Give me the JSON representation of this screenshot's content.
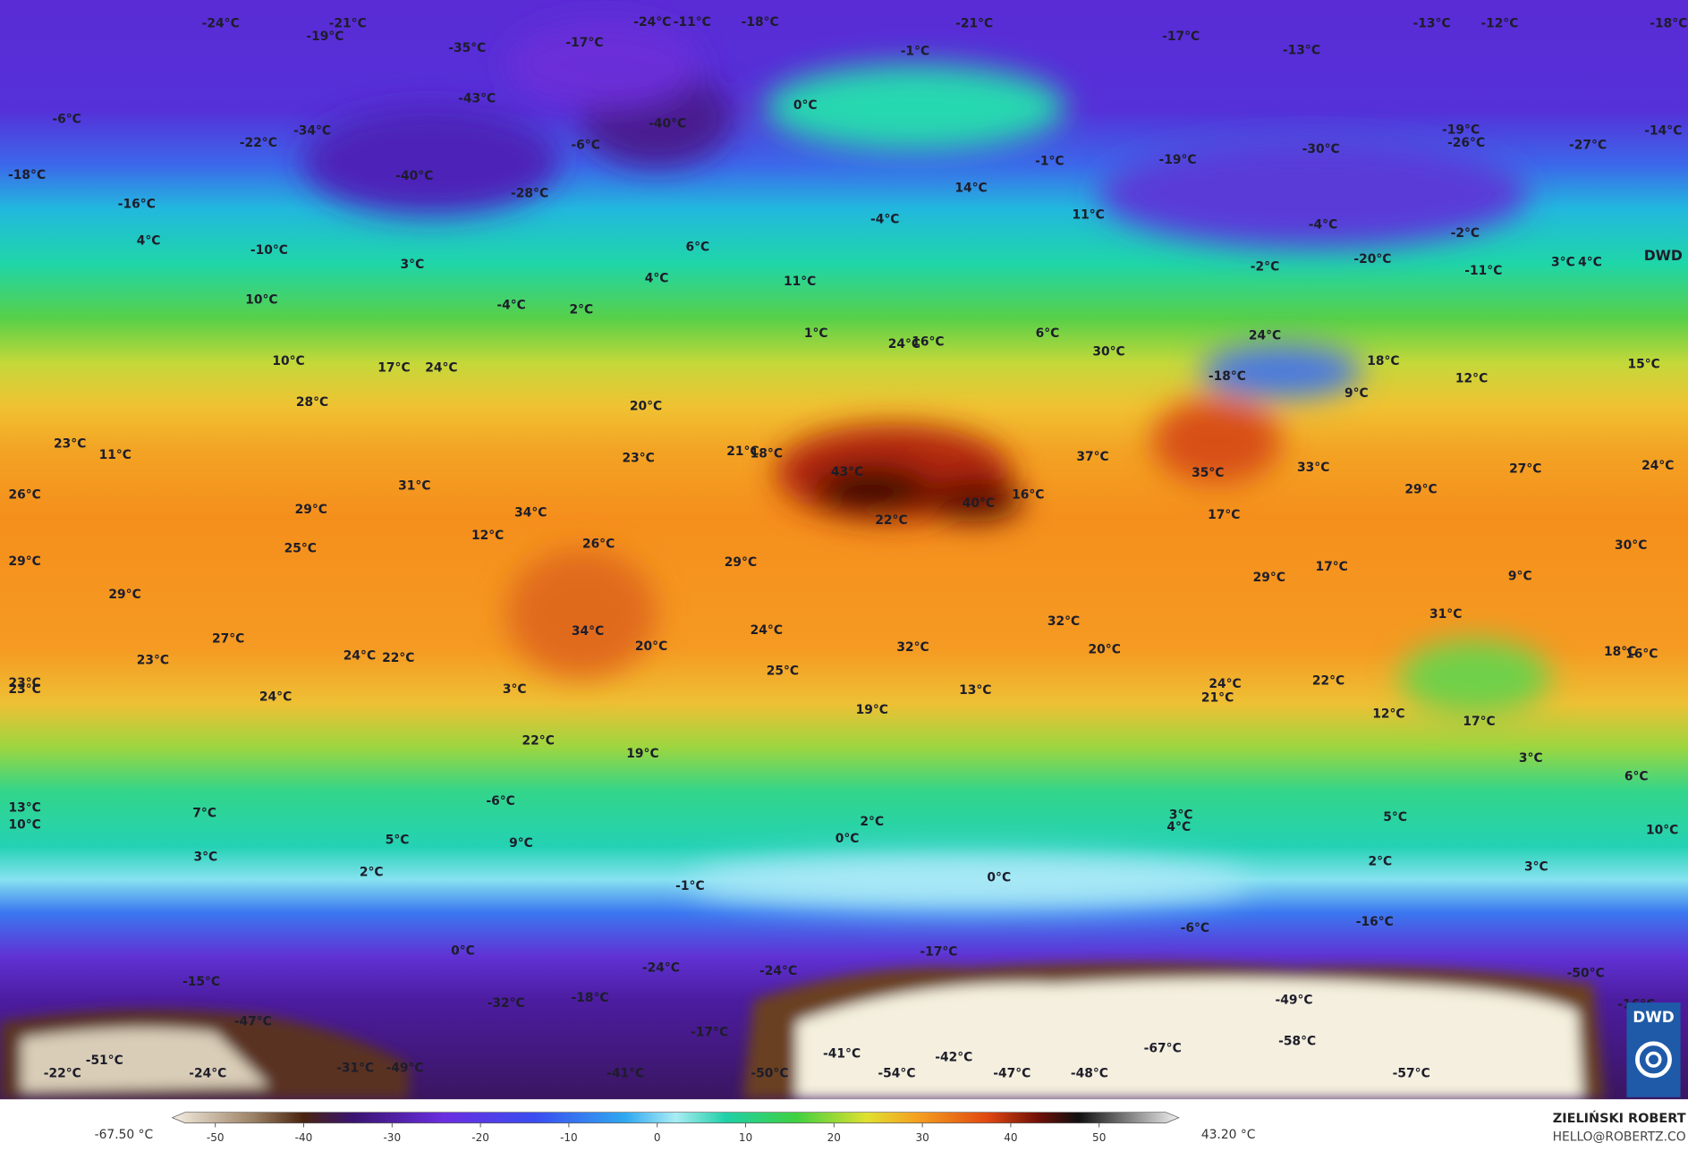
{
  "map": {
    "labels": [
      "-24°C",
      "-21°C",
      "-19°C",
      "-35°C",
      "-17°C",
      "-24°C",
      "-11°C",
      "-18°C",
      "-21°C",
      "-17°C",
      "-13°C",
      "-12°C",
      "-18°C",
      "-43°C",
      "-40°C",
      "0°C",
      "-1°C",
      "-13°C",
      "-6°C",
      "-22°C",
      "-34°C",
      "-6°C",
      "-40°C",
      "-28°C",
      "-18°C",
      "-16°C",
      "4°C",
      "-10°C",
      "3°C",
      "-1°C",
      "-19°C",
      "-30°C",
      "-19°C",
      "-26°C",
      "-27°C",
      "-14°C",
      "14°C",
      "-4°C",
      "11°C",
      "-4°C",
      "-2°C",
      "6°C",
      "4°C",
      "-20°C",
      "3°C",
      "4°C",
      "-2°C",
      "-11°C",
      "11°C",
      "10°C",
      "-4°C",
      "2°C",
      "6°C",
      "1°C",
      "24°C",
      "16°C",
      "30°C",
      "24°C",
      "18°C",
      "12°C",
      "15°C",
      "-18°C",
      "9°C",
      "10°C",
      "17°C",
      "24°C",
      "20°C",
      "28°C",
      "23°C",
      "11°C",
      "23°C",
      "21°C",
      "18°C",
      "43°C",
      "37°C",
      "35°C",
      "33°C",
      "27°C",
      "24°C",
      "26°C",
      "31°C",
      "29°C",
      "34°C",
      "40°C",
      "16°C",
      "17°C",
      "29°C",
      "29°C",
      "25°C",
      "12°C",
      "26°C",
      "22°C",
      "29°C",
      "29°C",
      "17°C",
      "30°C",
      "9°C",
      "29°C",
      "27°C",
      "34°C",
      "24°C",
      "20°C",
      "32°C",
      "31°C",
      "20°C",
      "32°C",
      "18°C",
      "16°C",
      "23°C",
      "24°C",
      "22°C",
      "25°C",
      "13°C",
      "23°C",
      "23°C",
      "24°C",
      "3°C",
      "24°C",
      "22°C",
      "21°C",
      "19°C",
      "12°C",
      "17°C",
      "22°C",
      "19°C",
      "3°C",
      "6°C",
      "13°C",
      "-6°C",
      "7°C",
      "3°C",
      "4°C",
      "5°C",
      "10°C",
      "2°C",
      "0°C",
      "5°C",
      "9°C",
      "10°C",
      "3°C",
      "2°C",
      "2°C",
      "3°C",
      "-1°C",
      "0°C",
      "-6°C",
      "-16°C",
      "0°C",
      "-17°C",
      "-24°C",
      "-24°C",
      "-15°C",
      "-18°C",
      "-32°C",
      "-50°C",
      "-49°C",
      "-16°C",
      "-47°C",
      "-17°C",
      "-67°C",
      "-58°C",
      "-51°C",
      "-41°C",
      "-42°C",
      "-22°C",
      "-24°C",
      "-31°C",
      "-49°C",
      "-41°C",
      "-50°C",
      "-54°C",
      "-47°C",
      "-48°C",
      "-57°C"
    ]
  },
  "colorbar": {
    "min_label": "-67.50 °C",
    "max_label": "43.20 °C",
    "ticks": [
      -50,
      -40,
      -30,
      -20,
      -10,
      0,
      10,
      20,
      30,
      40,
      50
    ]
  },
  "logo": {
    "top": "DWD",
    "bottom": "DWD"
  },
  "credit": {
    "author": "ZIELIŃSKI ROBERT",
    "contact": "HELLO@ROBERTZ.CO"
  }
}
